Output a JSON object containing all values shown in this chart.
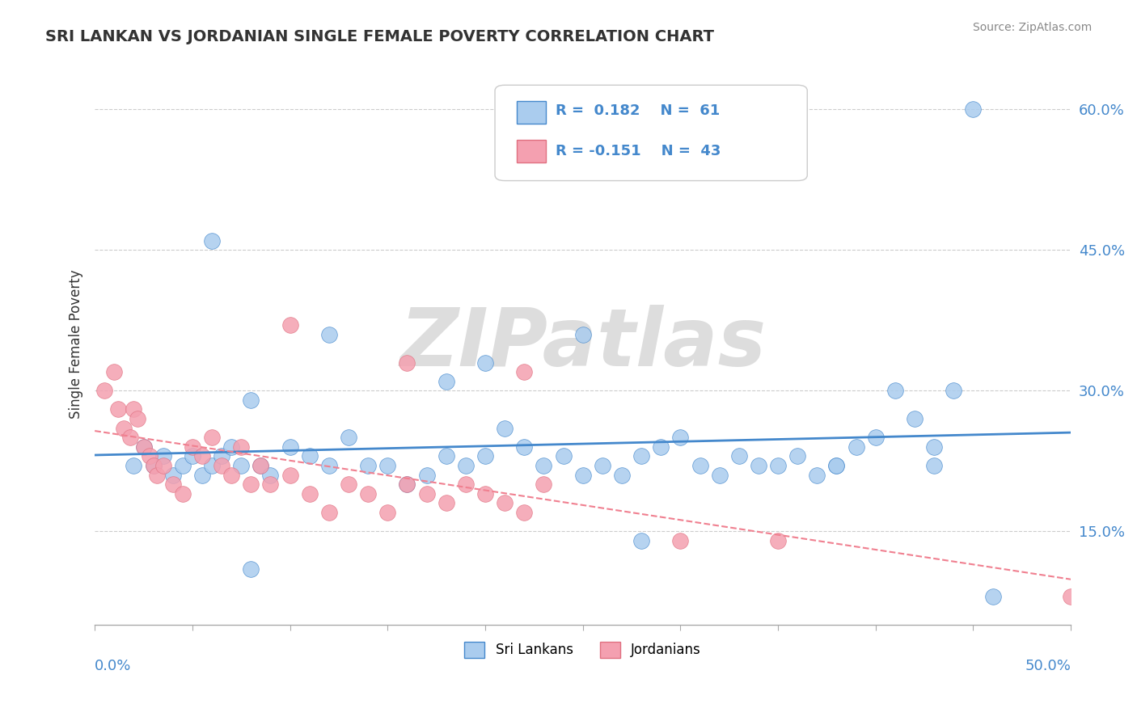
{
  "title": "SRI LANKAN VS JORDANIAN SINGLE FEMALE POVERTY CORRELATION CHART",
  "source": "Source: ZipAtlas.com",
  "ylabel": "Single Female Poverty",
  "legend_label1": "Sri Lankans",
  "legend_label2": "Jordanians",
  "R1": 0.182,
  "N1": 61,
  "R2": -0.151,
  "N2": 43,
  "color_sri": "#aaccee",
  "color_jor": "#f4a0b0",
  "color_sri_line": "#4488cc",
  "color_jor_line": "#f08090",
  "color_jor_edge": "#e07080",
  "background": "#ffffff",
  "grid_color": "#cccccc",
  "watermark": "ZIPatlas",
  "watermark_color": "#dddddd",
  "xlim": [
    0.0,
    0.5
  ],
  "ylim": [
    0.05,
    0.65
  ],
  "sri_x": [
    0.02,
    0.025,
    0.03,
    0.035,
    0.04,
    0.045,
    0.05,
    0.055,
    0.06,
    0.065,
    0.07,
    0.075,
    0.08,
    0.085,
    0.09,
    0.1,
    0.11,
    0.12,
    0.13,
    0.14,
    0.15,
    0.16,
    0.17,
    0.18,
    0.19,
    0.2,
    0.21,
    0.22,
    0.23,
    0.24,
    0.25,
    0.26,
    0.27,
    0.28,
    0.29,
    0.3,
    0.31,
    0.32,
    0.33,
    0.34,
    0.35,
    0.36,
    0.37,
    0.38,
    0.39,
    0.4,
    0.41,
    0.42,
    0.43,
    0.44,
    0.25,
    0.06,
    0.08,
    0.12,
    0.18,
    0.2,
    0.45,
    0.38,
    0.28,
    0.43,
    0.46
  ],
  "sri_y": [
    0.22,
    0.24,
    0.22,
    0.23,
    0.21,
    0.22,
    0.23,
    0.21,
    0.22,
    0.23,
    0.24,
    0.22,
    0.29,
    0.22,
    0.21,
    0.24,
    0.23,
    0.22,
    0.25,
    0.22,
    0.22,
    0.2,
    0.21,
    0.23,
    0.22,
    0.23,
    0.26,
    0.24,
    0.22,
    0.23,
    0.21,
    0.22,
    0.21,
    0.23,
    0.24,
    0.25,
    0.22,
    0.21,
    0.23,
    0.22,
    0.22,
    0.23,
    0.21,
    0.22,
    0.24,
    0.25,
    0.3,
    0.27,
    0.22,
    0.3,
    0.36,
    0.46,
    0.11,
    0.36,
    0.31,
    0.33,
    0.6,
    0.22,
    0.14,
    0.24,
    0.08
  ],
  "jor_x": [
    0.005,
    0.01,
    0.012,
    0.015,
    0.018,
    0.02,
    0.022,
    0.025,
    0.028,
    0.03,
    0.032,
    0.035,
    0.04,
    0.045,
    0.05,
    0.055,
    0.06,
    0.065,
    0.07,
    0.075,
    0.08,
    0.085,
    0.09,
    0.1,
    0.11,
    0.12,
    0.13,
    0.14,
    0.15,
    0.16,
    0.17,
    0.18,
    0.19,
    0.2,
    0.21,
    0.22,
    0.23,
    0.5,
    0.3,
    0.35,
    0.1,
    0.16,
    0.22
  ],
  "jor_y": [
    0.3,
    0.32,
    0.28,
    0.26,
    0.25,
    0.28,
    0.27,
    0.24,
    0.23,
    0.22,
    0.21,
    0.22,
    0.2,
    0.19,
    0.24,
    0.23,
    0.25,
    0.22,
    0.21,
    0.24,
    0.2,
    0.22,
    0.2,
    0.21,
    0.19,
    0.17,
    0.2,
    0.19,
    0.17,
    0.2,
    0.19,
    0.18,
    0.2,
    0.19,
    0.18,
    0.17,
    0.2,
    0.08,
    0.14,
    0.14,
    0.37,
    0.33,
    0.32
  ],
  "yticks": [
    0.15,
    0.3,
    0.45,
    0.6
  ],
  "ytick_labels": [
    "15.0%",
    "30.0%",
    "45.0%",
    "60.0%"
  ],
  "xticks": [
    0.0,
    0.05,
    0.1,
    0.15,
    0.2,
    0.25,
    0.3,
    0.35,
    0.4,
    0.45,
    0.5
  ]
}
